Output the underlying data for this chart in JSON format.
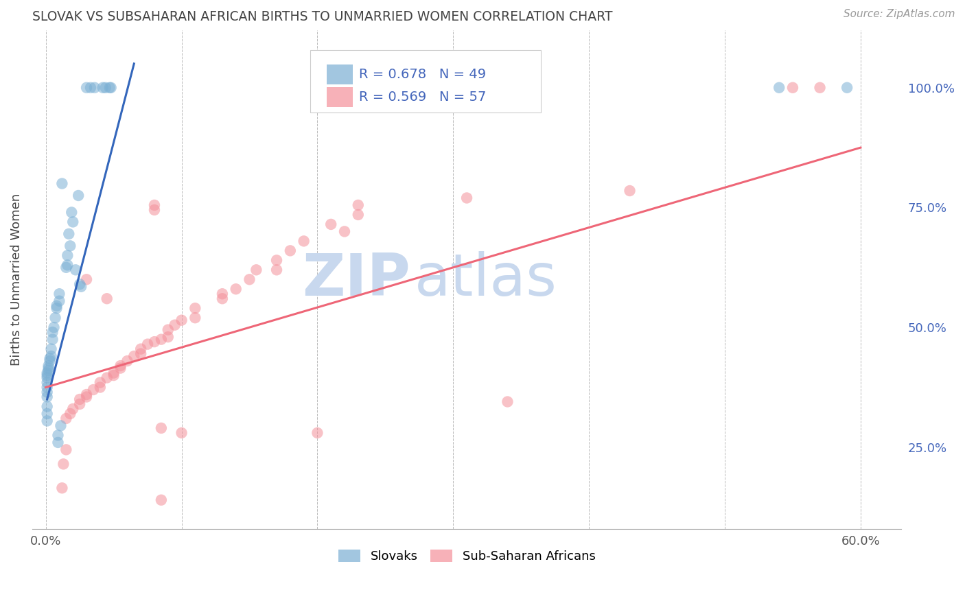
{
  "title": "SLOVAK VS SUBSAHARAN AFRICAN BIRTHS TO UNMARRIED WOMEN CORRELATION CHART",
  "source": "Source: ZipAtlas.com",
  "ylabel": "Births to Unmarried Women",
  "y_ticks_right": [
    0.25,
    0.5,
    0.75,
    1.0
  ],
  "y_tick_labels_right": [
    "25.0%",
    "50.0%",
    "75.0%",
    "100.0%"
  ],
  "blue_R": 0.678,
  "blue_N": 49,
  "pink_R": 0.569,
  "pink_N": 57,
  "blue_color": "#7BAFD4",
  "pink_color": "#F4909A",
  "blue_line_color": "#3366BB",
  "pink_line_color": "#EE6677",
  "watermark_zip": "ZIP",
  "watermark_atlas": "atlas",
  "watermark_color": "#C8D8EE",
  "legend_label_blue": "Slovaks",
  "legend_label_pink": "Sub-Saharan Africans",
  "background_color": "#FFFFFF",
  "grid_color": "#BBBBBB",
  "title_color": "#444444",
  "axis_label_color": "#444444",
  "right_tick_color": "#4466BB",
  "blue_scatter": [
    [
      0.03,
      1.0
    ],
    [
      0.033,
      1.0
    ],
    [
      0.036,
      1.0
    ],
    [
      0.042,
      1.0
    ],
    [
      0.044,
      1.0
    ],
    [
      0.047,
      1.0
    ],
    [
      0.048,
      1.0
    ],
    [
      0.012,
      0.8
    ],
    [
      0.024,
      0.775
    ],
    [
      0.019,
      0.74
    ],
    [
      0.02,
      0.72
    ],
    [
      0.017,
      0.695
    ],
    [
      0.018,
      0.67
    ],
    [
      0.016,
      0.65
    ],
    [
      0.016,
      0.63
    ],
    [
      0.015,
      0.625
    ],
    [
      0.022,
      0.62
    ],
    [
      0.025,
      0.59
    ],
    [
      0.026,
      0.585
    ],
    [
      0.01,
      0.57
    ],
    [
      0.01,
      0.555
    ],
    [
      0.008,
      0.545
    ],
    [
      0.008,
      0.54
    ],
    [
      0.007,
      0.52
    ],
    [
      0.006,
      0.5
    ],
    [
      0.005,
      0.49
    ],
    [
      0.005,
      0.475
    ],
    [
      0.004,
      0.455
    ],
    [
      0.004,
      0.44
    ],
    [
      0.003,
      0.435
    ],
    [
      0.003,
      0.43
    ],
    [
      0.002,
      0.42
    ],
    [
      0.002,
      0.415
    ],
    [
      0.002,
      0.41
    ],
    [
      0.001,
      0.405
    ],
    [
      0.001,
      0.4
    ],
    [
      0.001,
      0.395
    ],
    [
      0.001,
      0.385
    ],
    [
      0.001,
      0.375
    ],
    [
      0.001,
      0.365
    ],
    [
      0.001,
      0.355
    ],
    [
      0.001,
      0.335
    ],
    [
      0.001,
      0.32
    ],
    [
      0.001,
      0.305
    ],
    [
      0.011,
      0.295
    ],
    [
      0.009,
      0.275
    ],
    [
      0.009,
      0.26
    ],
    [
      0.54,
      1.0
    ],
    [
      0.59,
      1.0
    ]
  ],
  "pink_scatter": [
    [
      0.55,
      1.0
    ],
    [
      0.57,
      1.0
    ],
    [
      0.43,
      0.785
    ],
    [
      0.31,
      0.77
    ],
    [
      0.23,
      0.755
    ],
    [
      0.23,
      0.735
    ],
    [
      0.21,
      0.715
    ],
    [
      0.22,
      0.7
    ],
    [
      0.19,
      0.68
    ],
    [
      0.18,
      0.66
    ],
    [
      0.17,
      0.64
    ],
    [
      0.17,
      0.62
    ],
    [
      0.155,
      0.62
    ],
    [
      0.15,
      0.6
    ],
    [
      0.14,
      0.58
    ],
    [
      0.13,
      0.57
    ],
    [
      0.13,
      0.56
    ],
    [
      0.11,
      0.54
    ],
    [
      0.11,
      0.52
    ],
    [
      0.1,
      0.515
    ],
    [
      0.095,
      0.505
    ],
    [
      0.09,
      0.495
    ],
    [
      0.09,
      0.48
    ],
    [
      0.085,
      0.475
    ],
    [
      0.08,
      0.47
    ],
    [
      0.075,
      0.465
    ],
    [
      0.07,
      0.455
    ],
    [
      0.07,
      0.445
    ],
    [
      0.065,
      0.44
    ],
    [
      0.06,
      0.43
    ],
    [
      0.055,
      0.42
    ],
    [
      0.055,
      0.415
    ],
    [
      0.05,
      0.405
    ],
    [
      0.05,
      0.4
    ],
    [
      0.045,
      0.395
    ],
    [
      0.04,
      0.385
    ],
    [
      0.04,
      0.375
    ],
    [
      0.035,
      0.37
    ],
    [
      0.03,
      0.36
    ],
    [
      0.03,
      0.355
    ],
    [
      0.025,
      0.35
    ],
    [
      0.025,
      0.34
    ],
    [
      0.02,
      0.33
    ],
    [
      0.018,
      0.32
    ],
    [
      0.015,
      0.31
    ],
    [
      0.015,
      0.245
    ],
    [
      0.013,
      0.215
    ],
    [
      0.012,
      0.165
    ],
    [
      0.1,
      0.28
    ],
    [
      0.2,
      0.28
    ],
    [
      0.34,
      0.345
    ],
    [
      0.03,
      0.6
    ],
    [
      0.045,
      0.56
    ],
    [
      0.08,
      0.745
    ],
    [
      0.08,
      0.755
    ],
    [
      0.085,
      0.14
    ],
    [
      0.085,
      0.29
    ]
  ],
  "blue_line": {
    "x0": 0.001,
    "y0": 0.35,
    "x1": 0.065,
    "y1": 1.05
  },
  "pink_line": {
    "x0": 0.0,
    "y0": 0.375,
    "x1": 0.6,
    "y1": 0.875
  },
  "xlim": [
    -0.01,
    0.63
  ],
  "ylim": [
    0.08,
    1.12
  ],
  "x_tick_positions": [
    0.0,
    0.1,
    0.2,
    0.3,
    0.4,
    0.5,
    0.6
  ],
  "x_tick_labels": [
    "0.0%",
    "",
    "",
    "",
    "",
    "",
    "60.0%"
  ]
}
